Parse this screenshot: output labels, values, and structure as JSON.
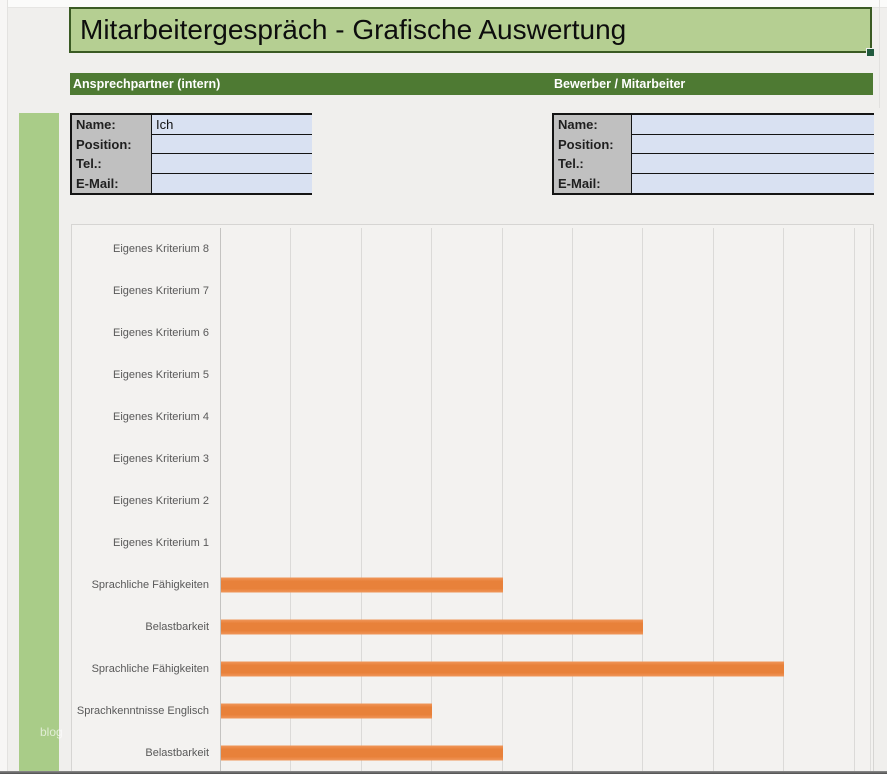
{
  "page": {
    "title": "Mitarbeitergespräch - Grafische Auswertung",
    "watermark": "blog"
  },
  "section_headers": {
    "left": "Ansprechpartner (intern)",
    "right": "Bewerber / Mitarbeiter"
  },
  "forms": {
    "left": {
      "rows": [
        {
          "label": "Name:",
          "value": "Ich"
        },
        {
          "label": "Position:",
          "value": ""
        },
        {
          "label": "Tel.:",
          "value": ""
        },
        {
          "label": "E-Mail:",
          "value": ""
        }
      ]
    },
    "right": {
      "rows": [
        {
          "label": "Name:",
          "value": ""
        },
        {
          "label": "Position:",
          "value": ""
        },
        {
          "label": "Tel.:",
          "value": ""
        },
        {
          "label": "E-Mail:",
          "value": ""
        }
      ]
    }
  },
  "colors": {
    "title_fill": "#b5cf92",
    "title_border": "#3a5a23",
    "band_green": "#4e7a33",
    "strip_green": "#a9cc88",
    "label_gray": "#c0c0c0",
    "field_blue": "#d9e1f2",
    "bar_orange": "#e8813a",
    "gridline": "#dbdad8"
  },
  "chart_data": {
    "type": "bar",
    "orientation": "horizontal",
    "title": "",
    "xlabel": "",
    "ylabel": "",
    "grid": true,
    "legend": false,
    "xlim": [
      0,
      9
    ],
    "gridline_step": 1,
    "bar_color": "#e8813a",
    "categories": [
      "Eigenes Kriterium 8",
      "Eigenes Kriterium 7",
      "Eigenes Kriterium 6",
      "Eigenes Kriterium 5",
      "Eigenes Kriterium 4",
      "Eigenes Kriterium 3",
      "Eigenes Kriterium 2",
      "Eigenes Kriterium 1",
      "Sprachliche Fähigkeiten",
      "Belastbarkeit",
      "Sprachliche Fähigkeiten",
      "Sprachkenntnisse Englisch",
      "Belastbarkeit"
    ],
    "values": [
      0,
      0,
      0,
      0,
      0,
      0,
      0,
      0,
      4,
      6,
      8,
      3,
      4
    ]
  }
}
